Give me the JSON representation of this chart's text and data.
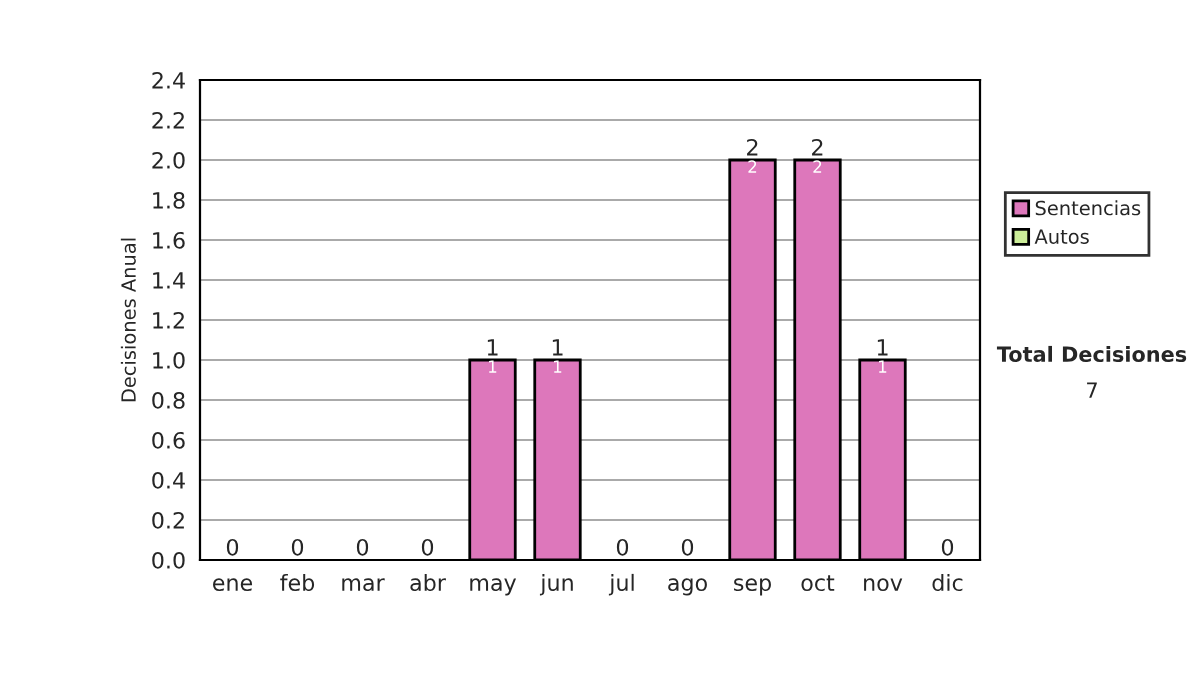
{
  "chart_data": {
    "type": "bar",
    "stacked": true,
    "ylabel": "Decisiones Anual",
    "categories": [
      "ene",
      "feb",
      "mar",
      "abr",
      "may",
      "jun",
      "jul",
      "ago",
      "sep",
      "oct",
      "nov",
      "dic"
    ],
    "series": [
      {
        "name": "Sentencias",
        "color": "#dd77bb",
        "values": [
          0,
          0,
          0,
          0,
          1,
          1,
          0,
          0,
          2,
          2,
          1,
          0
        ],
        "value_labels": [
          null,
          null,
          null,
          null,
          "1",
          "1",
          null,
          null,
          "2",
          "2",
          "1",
          null
        ]
      },
      {
        "name": "Autos",
        "color": "#ccee99",
        "values": [
          0,
          0,
          0,
          0,
          0,
          0,
          0,
          0,
          0,
          0,
          0,
          0
        ]
      }
    ],
    "totals": [
      "0",
      "0",
      "0",
      "0",
      "1",
      "1",
      "0",
      "0",
      "2",
      "2",
      "1",
      "0"
    ],
    "ylim": [
      0,
      2.4
    ],
    "yticks": [
      "0.0",
      "0.2",
      "0.4",
      "0.6",
      "0.8",
      "1.0",
      "1.2",
      "1.4",
      "1.6",
      "1.8",
      "2.0",
      "2.2",
      "2.4"
    ],
    "grid": "y",
    "legend": "right",
    "annotations": [
      "Total Decisiones",
      "7"
    ]
  }
}
